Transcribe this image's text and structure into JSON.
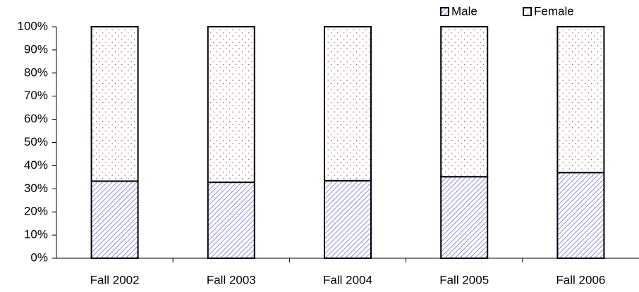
{
  "chart_data": {
    "type": "stacked_bar",
    "categories": [
      "Fall 2002",
      "Fall 2003",
      "Fall 2004",
      "Fall 2005",
      "Fall 2006"
    ],
    "series": [
      {
        "name": "Male",
        "color": "#8c8cf0",
        "values": [
          33.3,
          32.8,
          33.5,
          35.2,
          37
        ]
      },
      {
        "name": "Female",
        "color": "#c05a5a",
        "values": [
          66.7,
          67.2,
          66.5,
          64.8,
          63
        ]
      }
    ],
    "ylim": [
      0,
      100
    ],
    "yticks": [
      {
        "value": 0,
        "label": "0%"
      },
      {
        "value": 10,
        "label": "10%"
      },
      {
        "value": 20,
        "label": "20%"
      },
      {
        "value": 30,
        "label": "30%"
      },
      {
        "value": 40,
        "label": "40%"
      },
      {
        "value": 50,
        "label": "50%"
      },
      {
        "value": 60,
        "label": "60%"
      },
      {
        "value": 70,
        "label": "70%"
      },
      {
        "value": 80,
        "label": "80%"
      },
      {
        "value": 90,
        "label": "90%"
      },
      {
        "value": 100,
        "label": "100%"
      }
    ],
    "legend": "top-right"
  }
}
